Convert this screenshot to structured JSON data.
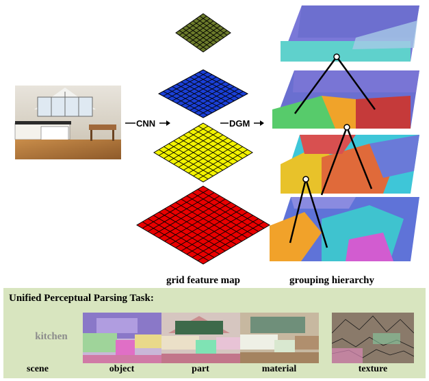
{
  "arrows": {
    "cnn": "CNN",
    "dgm": "DGM"
  },
  "captions": {
    "grid": "grid feature map",
    "grouping": "grouping hierarchy"
  },
  "panel": {
    "title": "Unified Perceptual Parsing Task:",
    "scene_value": "kitchen",
    "tasks": [
      "scene",
      "object",
      "part",
      "material",
      "texture"
    ]
  },
  "colors": {
    "grid_top": "#6b7a2a",
    "grid_blue": "#1a3fd6",
    "grid_yellow": "#f2f200",
    "grid_red": "#e80000",
    "panel_bg": "#d8e5bf"
  }
}
